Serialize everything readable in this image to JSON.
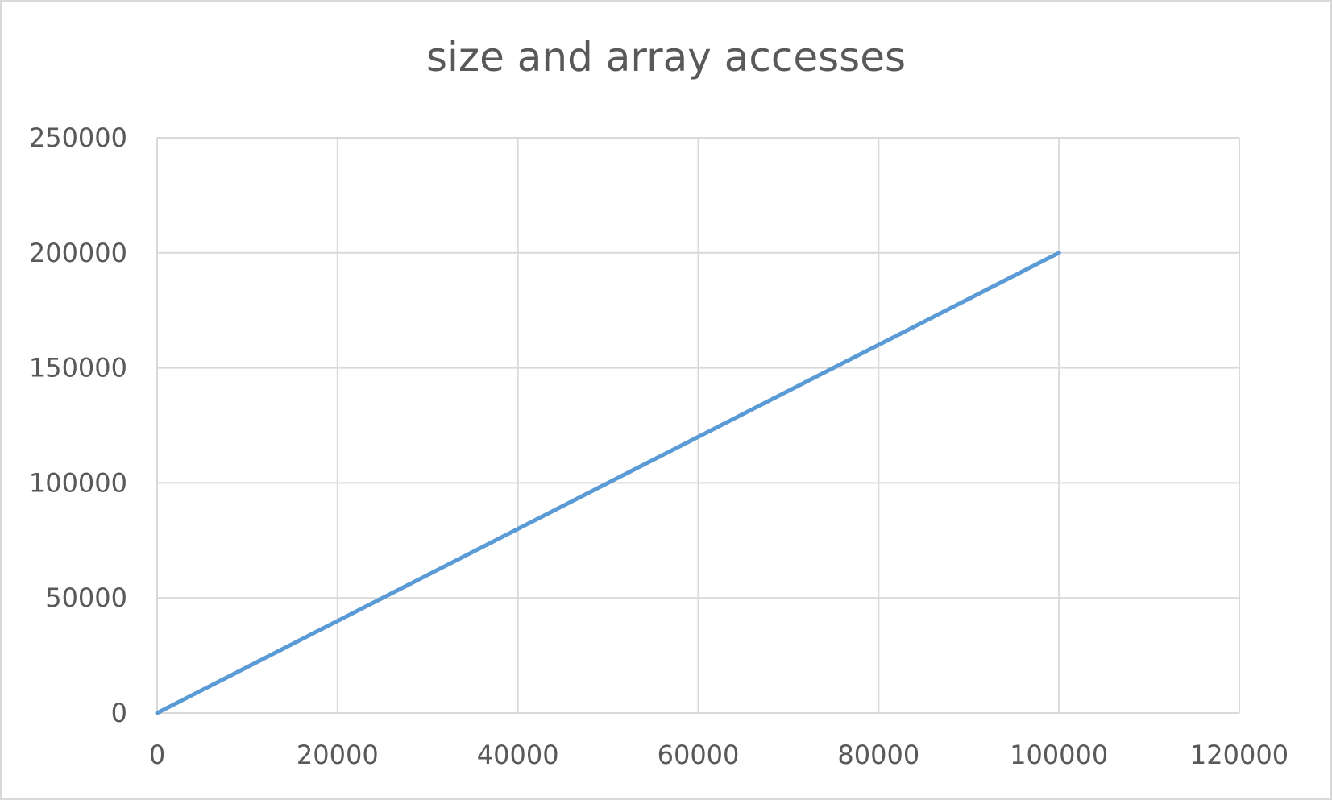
{
  "chart_data": {
    "type": "line",
    "title": "size and array accesses",
    "xlabel": "",
    "ylabel": "",
    "xlim": [
      0,
      120000
    ],
    "ylim": [
      0,
      250000
    ],
    "x_ticks": [
      0,
      20000,
      40000,
      60000,
      80000,
      100000,
      120000
    ],
    "y_ticks": [
      0,
      50000,
      100000,
      150000,
      200000,
      250000
    ],
    "grid": true,
    "legend": "none",
    "series": [
      {
        "color": "#5b9bd5",
        "x": [
          0,
          100000
        ],
        "y": [
          0,
          200000
        ]
      }
    ]
  }
}
